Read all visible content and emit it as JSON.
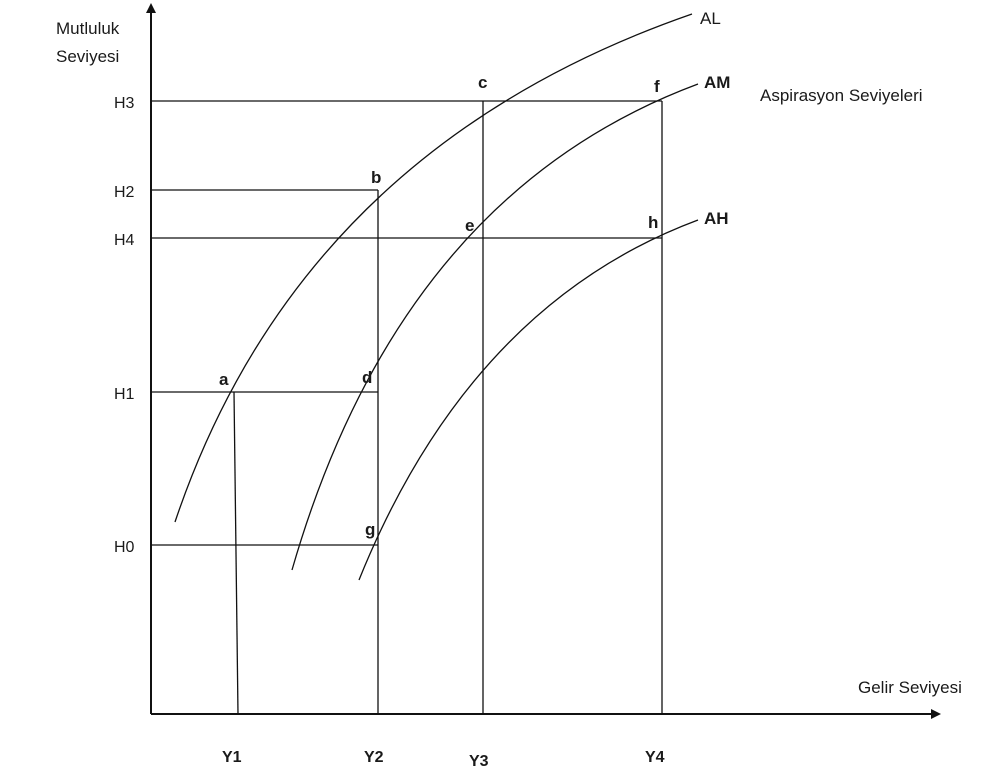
{
  "axes": {
    "y_title_line1": "Mutluluk",
    "y_title_line2": "Seviyesi",
    "x_title": "Gelir Seviyesi"
  },
  "y_levels": [
    "H3",
    "H2",
    "H4",
    "H1",
    "H0"
  ],
  "x_levels": [
    "Y1",
    "Y2",
    "Y3",
    "Y4"
  ],
  "curves": [
    {
      "id": "AL",
      "label": "AL"
    },
    {
      "id": "AM",
      "label": "AM"
    },
    {
      "id": "AH",
      "label": "AH"
    }
  ],
  "curves_group_label": "Aspirasyon Seviyeleri",
  "points": [
    {
      "label": "a",
      "curve": "AL",
      "x": "Y1",
      "y": "H1"
    },
    {
      "label": "b",
      "curve": "AL",
      "x": "Y2",
      "y": "H2"
    },
    {
      "label": "c",
      "curve": "AL",
      "x": "Y3",
      "y": "H3"
    },
    {
      "label": "d",
      "curve": "AM",
      "x": "Y2",
      "y": "H1"
    },
    {
      "label": "e",
      "curve": "AM",
      "x": "Y3",
      "y": "H4"
    },
    {
      "label": "f",
      "curve": "AM",
      "x": "Y4",
      "y": "H3"
    },
    {
      "label": "g",
      "curve": "AH",
      "x": "Y2",
      "y": "H0"
    },
    {
      "label": "h",
      "curve": "AH",
      "x": "Y4",
      "y": "H4"
    }
  ]
}
